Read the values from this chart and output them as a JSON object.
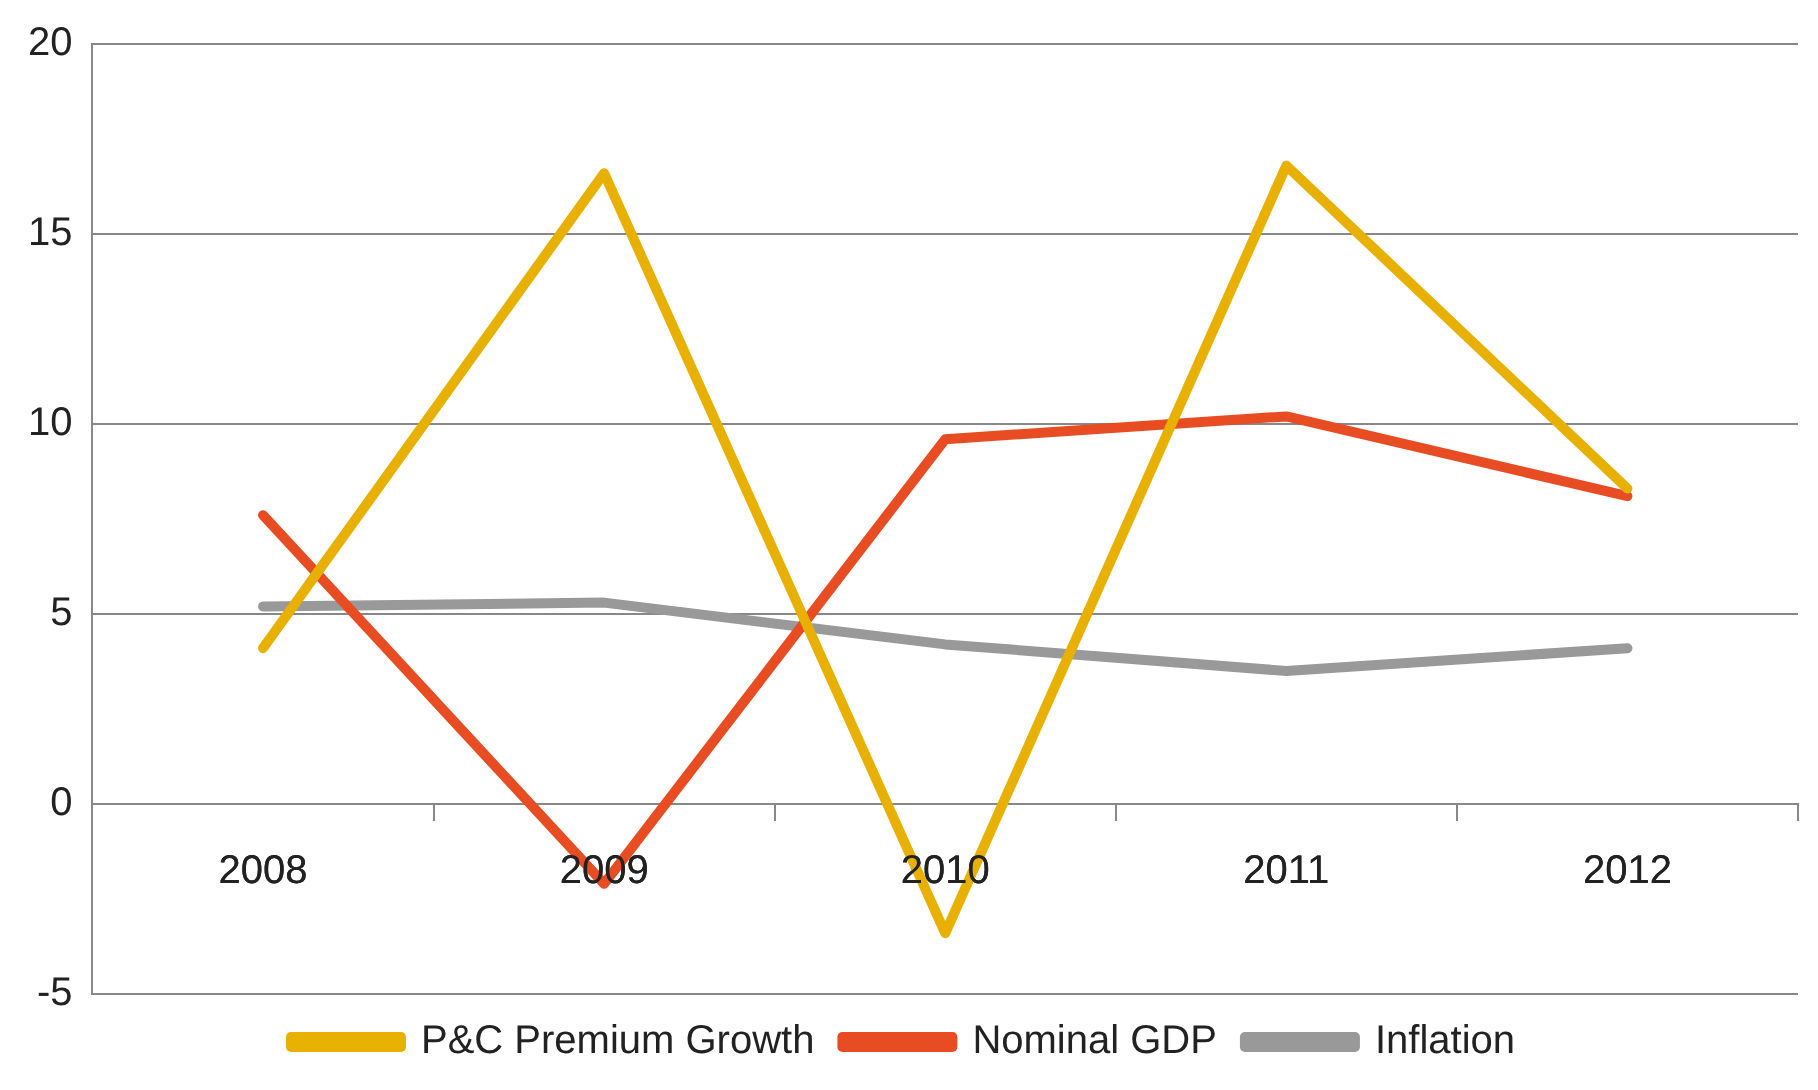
{
  "chart_data": {
    "type": "line",
    "categories": [
      "2008",
      "2009",
      "2010",
      "2011",
      "2012"
    ],
    "series": [
      {
        "name": "P&C Premium Growth",
        "color": "#e8b000",
        "values": [
          4.1,
          16.6,
          -3.4,
          16.8,
          8.3
        ]
      },
      {
        "name": "Nominal GDP",
        "color": "#e84c22",
        "values": [
          7.6,
          -2.1,
          9.6,
          10.2,
          8.1
        ]
      },
      {
        "name": "Inflation",
        "color": "#999999",
        "values": [
          5.2,
          5.3,
          4.2,
          3.5,
          4.1
        ]
      }
    ],
    "ylim": [
      -5,
      20
    ],
    "yticks": [
      -5,
      0,
      5,
      10,
      15,
      20
    ],
    "grid": "y",
    "legend": "bottom",
    "marker": "none",
    "line_style": "solid"
  }
}
